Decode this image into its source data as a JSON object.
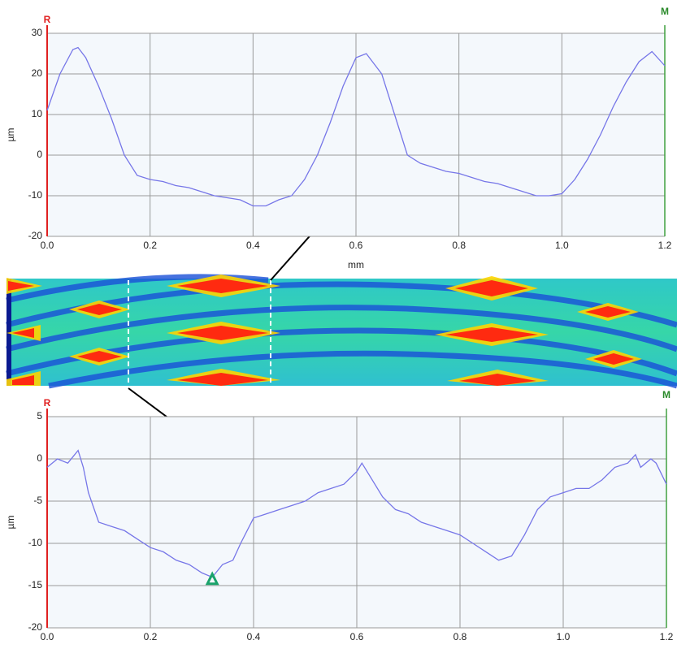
{
  "chart_data": [
    {
      "type": "line",
      "left_marker": "R",
      "right_marker": "M",
      "x_label": "mm",
      "y_label": "µm",
      "xlim": [
        0,
        1.2
      ],
      "ylim": [
        -20,
        30
      ],
      "xticks": [
        {
          "value": 0,
          "label": "0.0"
        },
        0.2,
        0.4,
        0.6,
        0.8,
        {
          "value": 1,
          "label": "1.0"
        },
        1.2
      ],
      "yticks": [
        -20,
        -10,
        0,
        10,
        20,
        30
      ],
      "grid": true,
      "series": [
        {
          "color": "#7676e8",
          "x": [
            0,
            0.025,
            0.05,
            0.06,
            0.075,
            0.1,
            0.125,
            0.15,
            0.175,
            0.2,
            0.225,
            0.25,
            0.275,
            0.3,
            0.325,
            0.35,
            0.375,
            0.4,
            0.425,
            0.45,
            0.475,
            0.5,
            0.525,
            0.55,
            0.575,
            0.6,
            0.62,
            0.65,
            0.675,
            0.7,
            0.725,
            0.75,
            0.775,
            0.8,
            0.825,
            0.85,
            0.875,
            0.9,
            0.925,
            0.95,
            0.975,
            1.0,
            1.025,
            1.05,
            1.075,
            1.1,
            1.125,
            1.15,
            1.175,
            1.2
          ],
          "values": [
            11,
            20,
            26,
            26.5,
            24,
            17,
            9,
            0,
            -5,
            -6,
            -6.5,
            -7.5,
            -8,
            -9,
            -10,
            -10.5,
            -11,
            -12.5,
            -12.5,
            -11,
            -10,
            -6,
            0,
            8,
            17,
            24,
            25,
            20,
            10,
            0,
            -2,
            -3,
            -4,
            -4.5,
            -5.5,
            -6.5,
            -7,
            -8,
            -9,
            -10,
            -10,
            -9.5,
            -6,
            -1,
            5,
            12,
            18,
            23,
            25.5,
            22
          ]
        }
      ]
    },
    {
      "type": "line",
      "left_marker": "R",
      "right_marker": "M",
      "y_label": "µm",
      "xlim": [
        0,
        1.2
      ],
      "ylim": [
        -20,
        5
      ],
      "xticks": [
        {
          "value": 0,
          "label": "0.0"
        },
        0.2,
        0.4,
        0.6,
        0.8,
        {
          "value": 1,
          "label": "1.0"
        },
        1.2
      ],
      "yticks": [
        -20,
        -15,
        -10,
        -5,
        0,
        5
      ],
      "grid": true,
      "marker": {
        "x": 0.32,
        "y": -14.3,
        "color": "#1aa36b"
      },
      "series": [
        {
          "color": "#7676e8",
          "x": [
            0,
            0.02,
            0.04,
            0.06,
            0.07,
            0.08,
            0.1,
            0.125,
            0.15,
            0.175,
            0.2,
            0.225,
            0.25,
            0.275,
            0.3,
            0.32,
            0.34,
            0.36,
            0.375,
            0.4,
            0.425,
            0.45,
            0.475,
            0.5,
            0.525,
            0.55,
            0.575,
            0.6,
            0.61,
            0.625,
            0.65,
            0.675,
            0.7,
            0.725,
            0.75,
            0.775,
            0.8,
            0.825,
            0.85,
            0.875,
            0.9,
            0.925,
            0.95,
            0.975,
            1.0,
            1.025,
            1.05,
            1.075,
            1.1,
            1.125,
            1.14,
            1.15,
            1.17,
            1.18,
            1.2
          ],
          "values": [
            -1,
            0,
            -0.5,
            1,
            -1,
            -4,
            -7.5,
            -8,
            -8.5,
            -9.5,
            -10.5,
            -11,
            -12,
            -12.5,
            -13.5,
            -14,
            -12.5,
            -12,
            -10,
            -7,
            -6.5,
            -6,
            -5.5,
            -5,
            -4,
            -3.5,
            -3,
            -1.5,
            -0.5,
            -2,
            -4.5,
            -6,
            -6.5,
            -7.5,
            -8,
            -8.5,
            -9,
            -10,
            -11,
            -12,
            -11.5,
            -9,
            -6,
            -4.5,
            -4,
            -3.5,
            -3.5,
            -2.5,
            -1,
            -0.5,
            0.5,
            -1,
            0,
            -0.5,
            -3
          ]
        }
      ]
    }
  ]
}
